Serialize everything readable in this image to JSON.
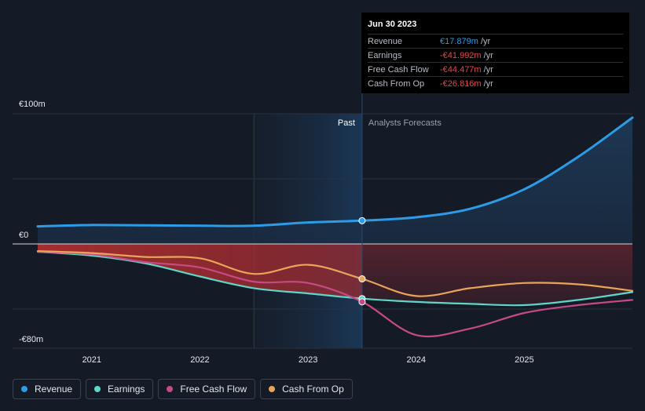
{
  "chart_data": {
    "type": "line",
    "y_tick_labels": [
      "€100m",
      "€0",
      "-€80m"
    ],
    "ylim": [
      -80,
      100
    ],
    "x_tick_labels": [
      "2021",
      "2022",
      "2023",
      "2024",
      "2025"
    ],
    "xlim": [
      2020.5,
      2026.0
    ],
    "divider_x": 2023.5,
    "past_label": "Past",
    "forecast_label": "Analysts Forecasts",
    "series": [
      {
        "name": "Revenue",
        "color": "#2d9be6",
        "values": [
          [
            2020.5,
            13.5
          ],
          [
            2021.0,
            14.5
          ],
          [
            2021.5,
            14.3
          ],
          [
            2022.0,
            14.0
          ],
          [
            2022.5,
            14.0
          ],
          [
            2023.0,
            16.5
          ],
          [
            2023.5,
            17.879
          ],
          [
            2024.0,
            20.5
          ],
          [
            2024.5,
            27
          ],
          [
            2025.0,
            42
          ],
          [
            2025.5,
            67
          ],
          [
            2026.0,
            97
          ]
        ]
      },
      {
        "name": "Earnings",
        "color": "#5fd6c8",
        "values": [
          [
            2020.5,
            -6
          ],
          [
            2021.0,
            -9
          ],
          [
            2021.5,
            -15
          ],
          [
            2022.0,
            -25
          ],
          [
            2022.5,
            -34
          ],
          [
            2023.0,
            -38
          ],
          [
            2023.5,
            -41.992
          ],
          [
            2024.0,
            -44.5
          ],
          [
            2024.5,
            -46
          ],
          [
            2025.0,
            -47
          ],
          [
            2025.5,
            -43
          ],
          [
            2026.0,
            -37
          ]
        ]
      },
      {
        "name": "Free Cash Flow",
        "color": "#c54a86",
        "values": [
          [
            2020.5,
            -6
          ],
          [
            2021.0,
            -8
          ],
          [
            2021.5,
            -14
          ],
          [
            2022.0,
            -18
          ],
          [
            2022.5,
            -29
          ],
          [
            2023.0,
            -30
          ],
          [
            2023.5,
            -44.477
          ],
          [
            2024.0,
            -70
          ],
          [
            2024.5,
            -65
          ],
          [
            2025.0,
            -53
          ],
          [
            2025.5,
            -47
          ],
          [
            2026.0,
            -43
          ]
        ]
      },
      {
        "name": "Cash From Op",
        "color": "#e8a55a",
        "values": [
          [
            2020.5,
            -5.5
          ],
          [
            2021.0,
            -7
          ],
          [
            2021.5,
            -10
          ],
          [
            2022.0,
            -11
          ],
          [
            2022.5,
            -23
          ],
          [
            2023.0,
            -16
          ],
          [
            2023.5,
            -26.816
          ],
          [
            2024.0,
            -40
          ],
          [
            2024.5,
            -34
          ],
          [
            2025.0,
            -30
          ],
          [
            2025.5,
            -31
          ],
          [
            2026.0,
            -36
          ]
        ]
      }
    ]
  },
  "tooltip": {
    "date": "Jun 30 2023",
    "rows": [
      {
        "label": "Revenue",
        "value": "€17.879m",
        "unit": "/yr",
        "color": "#2d9be6"
      },
      {
        "label": "Earnings",
        "value": "-€41.992m",
        "unit": "/yr",
        "color": "#e8474a"
      },
      {
        "label": "Free Cash Flow",
        "value": "-€44.477m",
        "unit": "/yr",
        "color": "#e8474a"
      },
      {
        "label": "Cash From Op",
        "value": "-€26.816m",
        "unit": "/yr",
        "color": "#e8474a"
      }
    ]
  },
  "legend": [
    {
      "label": "Revenue",
      "color": "#2d9be6"
    },
    {
      "label": "Earnings",
      "color": "#5fd6c8"
    },
    {
      "label": "Free Cash Flow",
      "color": "#c54a86"
    },
    {
      "label": "Cash From Op",
      "color": "#e8a55a"
    }
  ]
}
